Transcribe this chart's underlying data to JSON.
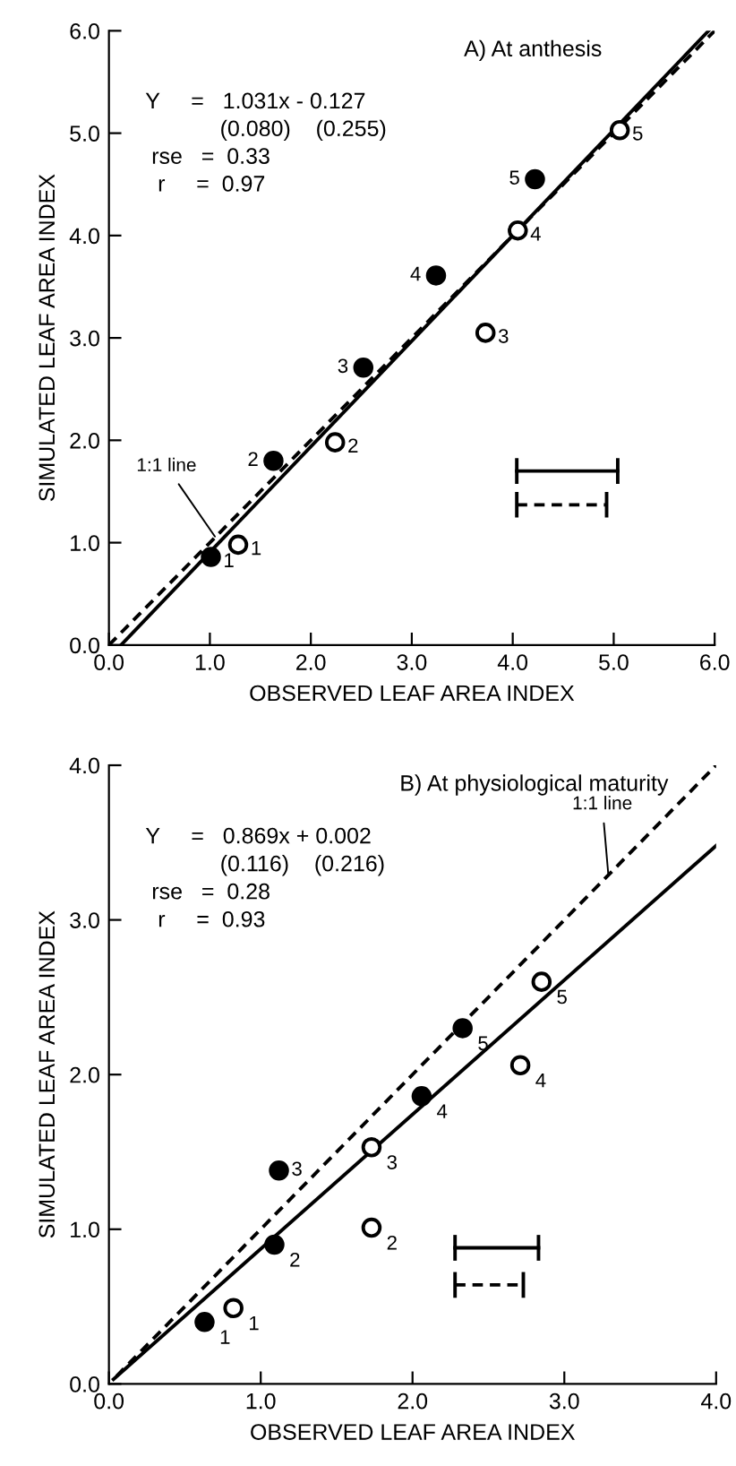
{
  "chart_data": [
    {
      "type": "scatter",
      "title": "A) At anthesis",
      "xlabel": "OBSERVED LEAF AREA INDEX",
      "ylabel": "SIMULATED LEAF AREA INDEX",
      "xlim": [
        0,
        6
      ],
      "ylim": [
        0,
        6
      ],
      "xticks": [
        {
          "value": 0,
          "label": "0.0"
        },
        {
          "value": 1,
          "label": "1.0"
        },
        {
          "value": 2,
          "label": "2.0"
        },
        {
          "value": 3,
          "label": "3.0"
        },
        {
          "value": 4,
          "label": "4.0"
        },
        {
          "value": 5,
          "label": "5.0"
        },
        {
          "value": 6,
          "label": "6.0"
        }
      ],
      "yticks": [
        {
          "value": 0,
          "label": "0.0"
        },
        {
          "value": 1,
          "label": "1.0"
        },
        {
          "value": 2,
          "label": "2.0"
        },
        {
          "value": 3,
          "label": "3.0"
        },
        {
          "value": 4,
          "label": "4.0"
        },
        {
          "value": 5,
          "label": "5.0"
        },
        {
          "value": 6,
          "label": "6.0"
        }
      ],
      "grid": false,
      "legend": false,
      "series": [
        {
          "color": "#000000",
          "marker": "circle",
          "x": [
            1.01,
            1.63,
            2.52,
            3.24,
            4.22
          ],
          "values": [
            0.86,
            1.8,
            2.71,
            3.61,
            4.55
          ]
        },
        {
          "color": "#ffffff",
          "marker": "circle",
          "x": [
            1.28,
            2.24,
            3.73,
            4.05,
            5.06
          ],
          "values": [
            0.98,
            1.98,
            3.05,
            4.05,
            5.03
          ]
        },
        {
          "type": "line",
          "color": "#000000",
          "line_style": "solid",
          "x": [
            0.12,
            5.94
          ],
          "values": [
            0.0,
            6.0
          ]
        },
        {
          "type": "line",
          "color": "#000000",
          "line_style": "dashed",
          "x": [
            0.0,
            6.0
          ],
          "values": [
            0.0,
            6.0
          ]
        },
        {
          "type": "line",
          "color": "#000000",
          "line_style": "solid",
          "x": [
            4.04,
            5.04
          ],
          "values": [
            1.7,
            1.7
          ]
        },
        {
          "type": "line",
          "color": "#000000",
          "line_style": "dashed",
          "x": [
            4.04,
            4.93
          ],
          "values": [
            1.37,
            1.37
          ]
        }
      ],
      "annotations": [
        "Y     =   1.031x - 0.127",
        "            (0.080)    (0.255)",
        " rse   =  0.33",
        "  r     =  0.97",
        {
          "text": "1:1 line",
          "x": 1.05,
          "y": 1.06
        },
        {
          "text": "1",
          "x": 1.01,
          "y": 0.86
        },
        {
          "text": "2",
          "x": 1.63,
          "y": 1.8
        },
        {
          "text": "3",
          "x": 2.52,
          "y": 2.71
        },
        {
          "text": "4",
          "x": 3.24,
          "y": 3.61
        },
        {
          "text": "5",
          "x": 4.22,
          "y": 4.55
        },
        {
          "text": "1",
          "x": 1.28,
          "y": 0.98
        },
        {
          "text": "2",
          "x": 2.24,
          "y": 1.98
        },
        {
          "text": "3",
          "x": 3.73,
          "y": 3.05
        },
        {
          "text": "4",
          "x": 4.05,
          "y": 4.05
        },
        {
          "text": "5",
          "x": 5.06,
          "y": 5.03
        }
      ]
    },
    {
      "type": "scatter",
      "title": "B) At physiological maturity",
      "xlabel": "OBSERVED LEAF AREA INDEX",
      "ylabel": "SIMULATED LEAF AREA INDEX",
      "xlim": [
        0,
        4
      ],
      "ylim": [
        0,
        4
      ],
      "xticks": [
        {
          "value": 0,
          "label": "0.0"
        },
        {
          "value": 1,
          "label": "1.0"
        },
        {
          "value": 2,
          "label": "2.0"
        },
        {
          "value": 3,
          "label": "3.0"
        },
        {
          "value": 4,
          "label": "4.0"
        }
      ],
      "yticks": [
        {
          "value": 0,
          "label": "0.0"
        },
        {
          "value": 1,
          "label": "1.0"
        },
        {
          "value": 2,
          "label": "2.0"
        },
        {
          "value": 3,
          "label": "3.0"
        },
        {
          "value": 4,
          "label": "4.0"
        }
      ],
      "grid": false,
      "legend": false,
      "series": [
        {
          "color": "#000000",
          "marker": "circle",
          "x": [
            0.63,
            1.09,
            1.12,
            2.06,
            2.33
          ],
          "values": [
            0.4,
            0.9,
            1.38,
            1.86,
            2.3
          ]
        },
        {
          "color": "#ffffff",
          "marker": "circle",
          "x": [
            0.82,
            1.73,
            1.73,
            2.71,
            2.85
          ],
          "values": [
            0.49,
            1.01,
            1.53,
            2.06,
            2.6
          ]
        },
        {
          "type": "line",
          "color": "#000000",
          "line_style": "solid",
          "x": [
            0.03,
            4.0
          ],
          "values": [
            0.03,
            3.48
          ]
        },
        {
          "type": "line",
          "color": "#000000",
          "line_style": "dashed",
          "x": [
            0.05,
            4.0
          ],
          "values": [
            0.05,
            4.0
          ]
        },
        {
          "type": "line",
          "color": "#000000",
          "line_style": "solid",
          "x": [
            2.28,
            2.83
          ],
          "values": [
            0.88,
            0.88
          ]
        },
        {
          "type": "line",
          "color": "#000000",
          "line_style": "dashed",
          "x": [
            2.28,
            2.73
          ],
          "values": [
            0.64,
            0.64
          ]
        }
      ],
      "annotations": [
        "Y     =   0.869x + 0.002",
        "            (0.116)    (0.216)",
        " rse   =  0.28",
        "  r     =  0.93",
        {
          "text": "1:1 line",
          "x": 3.29,
          "y": 3.29
        },
        {
          "text": "1",
          "x": 0.63,
          "y": 0.4
        },
        {
          "text": "2",
          "x": 1.09,
          "y": 0.9
        },
        {
          "text": "3",
          "x": 1.12,
          "y": 1.38
        },
        {
          "text": "4",
          "x": 2.06,
          "y": 1.86
        },
        {
          "text": "5",
          "x": 2.33,
          "y": 2.3
        },
        {
          "text": "1",
          "x": 0.82,
          "y": 0.49
        },
        {
          "text": "2",
          "x": 1.73,
          "y": 1.01
        },
        {
          "text": "3",
          "x": 1.73,
          "y": 1.53
        },
        {
          "text": "4",
          "x": 2.71,
          "y": 2.06
        },
        {
          "text": "5",
          "x": 2.85,
          "y": 2.6
        }
      ]
    }
  ]
}
